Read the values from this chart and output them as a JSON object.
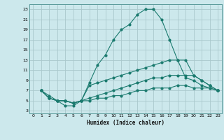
{
  "xlabel": "Humidex (Indice chaleur)",
  "background_color": "#cce8ec",
  "grid_color": "#aac8cc",
  "line_color": "#1a7a6e",
  "xlim": [
    -0.5,
    23.5
  ],
  "ylim": [
    2.5,
    24
  ],
  "xticks": [
    0,
    1,
    2,
    3,
    4,
    5,
    6,
    7,
    8,
    9,
    10,
    11,
    12,
    13,
    14,
    15,
    16,
    17,
    18,
    19,
    20,
    21,
    22,
    23
  ],
  "yticks": [
    3,
    5,
    7,
    9,
    11,
    13,
    15,
    17,
    19,
    21,
    23
  ],
  "curves": [
    {
      "x": [
        1,
        2,
        3,
        4,
        5,
        6,
        7,
        8,
        9,
        10,
        11,
        12,
        13,
        14,
        15,
        16,
        17,
        18,
        19,
        20,
        21,
        22,
        23
      ],
      "y": [
        7,
        6,
        5,
        4,
        4,
        5,
        8.5,
        12,
        14,
        17,
        19,
        20,
        22,
        23,
        23,
        21,
        17,
        13,
        9.5,
        9,
        8,
        7.5,
        7
      ]
    },
    {
      "x": [
        1,
        2,
        3,
        4,
        5,
        6,
        7,
        8,
        9,
        10,
        11,
        12,
        13,
        14,
        15,
        16,
        17,
        18,
        19,
        20,
        21,
        22,
        23
      ],
      "y": [
        7,
        5.5,
        5,
        5,
        4.5,
        5,
        8,
        8.5,
        9,
        9.5,
        10,
        10.5,
        11,
        11.5,
        12,
        12.5,
        13,
        13,
        13,
        10,
        9,
        8,
        7
      ]
    },
    {
      "x": [
        1,
        2,
        3,
        4,
        5,
        6,
        7,
        8,
        9,
        10,
        11,
        12,
        13,
        14,
        15,
        16,
        17,
        18,
        19,
        20,
        21,
        22,
        23
      ],
      "y": [
        7,
        5.5,
        5,
        5,
        4.5,
        5,
        5.5,
        6,
        6.5,
        7,
        7.5,
        8,
        8.5,
        9,
        9.5,
        9.5,
        10,
        10,
        10,
        10,
        9,
        8,
        7
      ]
    },
    {
      "x": [
        1,
        2,
        3,
        4,
        5,
        6,
        7,
        8,
        9,
        10,
        11,
        12,
        13,
        14,
        15,
        16,
        17,
        18,
        19,
        20,
        21,
        22,
        23
      ],
      "y": [
        7,
        5.5,
        5,
        5,
        4.5,
        5,
        5,
        5.5,
        5.5,
        6,
        6,
        6.5,
        7,
        7,
        7.5,
        7.5,
        7.5,
        8,
        8,
        7.5,
        7.5,
        7.5,
        7
      ]
    }
  ]
}
